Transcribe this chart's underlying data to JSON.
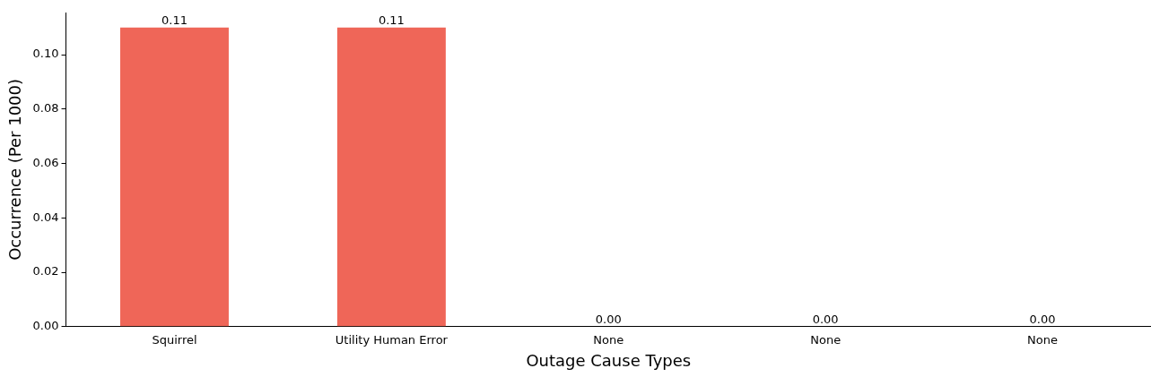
{
  "chart_data": {
    "type": "bar",
    "xlabel": "Outage Cause Types",
    "ylabel": "Occurrence (Per 1000)",
    "categories": [
      "Squirrel",
      "Utility Human Error",
      "None",
      "None",
      "None"
    ],
    "values": [
      0.11,
      0.11,
      0,
      0,
      0
    ],
    "value_labels": [
      "0.11",
      "0.11",
      "0.00",
      "0.00",
      "0.00"
    ],
    "color": "#ef6658",
    "ylim": [
      0,
      0.1155
    ],
    "yticks": [
      {
        "value": 0,
        "label": "0.00"
      },
      {
        "value": 0.02,
        "label": "0.02"
      },
      {
        "value": 0.04,
        "label": "0.04"
      },
      {
        "value": 0.06,
        "label": "0.06"
      },
      {
        "value": 0.08,
        "label": "0.08"
      },
      {
        "value": 0.1,
        "label": "0.10"
      }
    ],
    "grid": false,
    "legend": false
  }
}
